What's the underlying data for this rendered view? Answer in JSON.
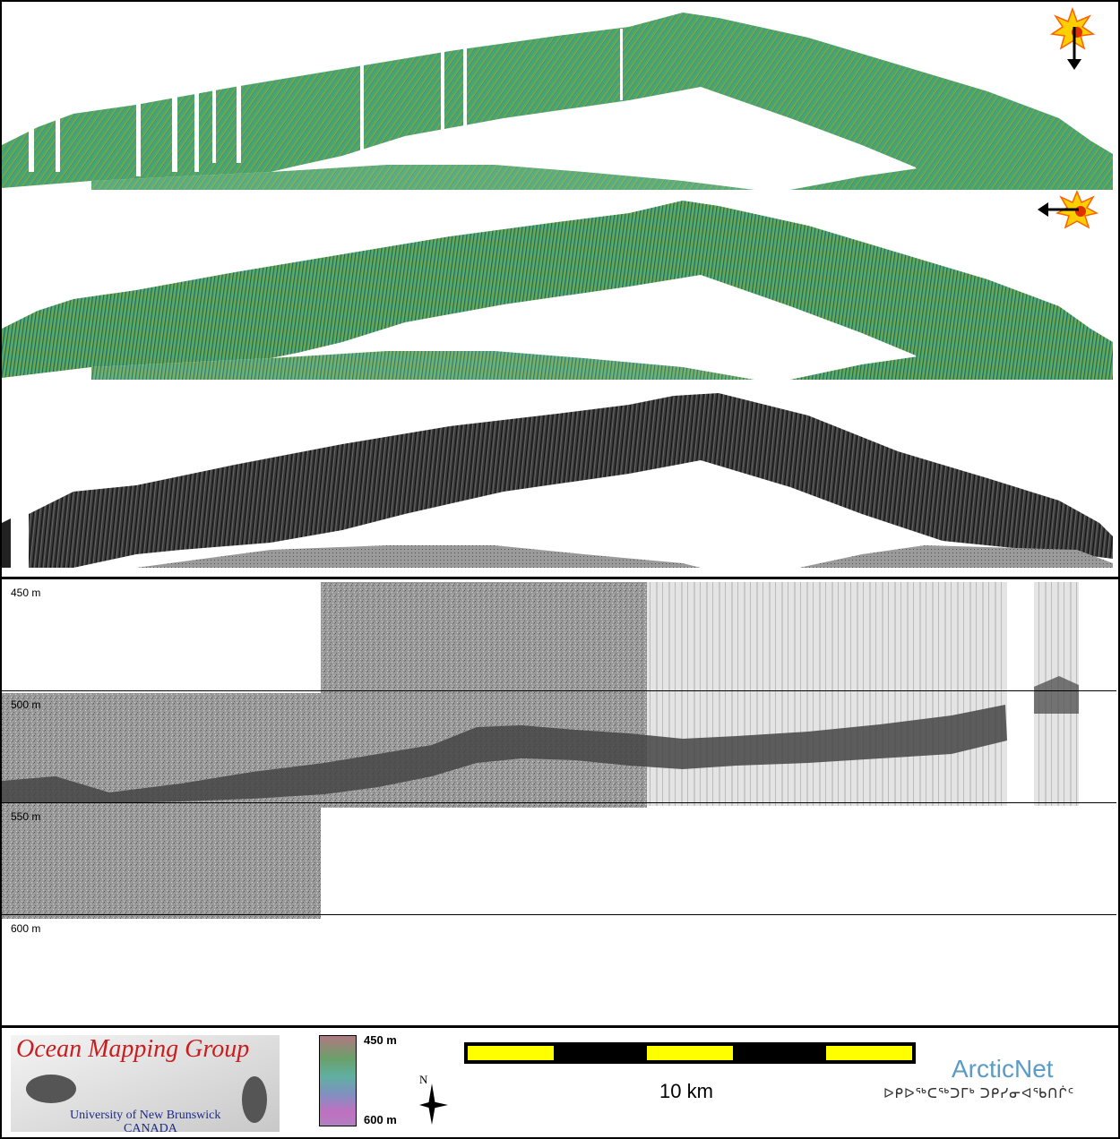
{
  "depth_scale": {
    "labels": [
      "450 m",
      "500 m",
      "550 m",
      "600 m"
    ]
  },
  "panels": {
    "bathy_north_sun": {
      "sun_direction": "north",
      "icon": "sun-arrow-down-icon"
    },
    "bathy_east_sun": {
      "sun_direction": "east",
      "icon": "sun-arrow-left-icon"
    },
    "backscatter": {
      "type": "backscatter mosaic"
    }
  },
  "colorbar": {
    "top_label": "450 m",
    "bottom_label": "600 m"
  },
  "scalebar": {
    "label": "10 km",
    "colors": {
      "dark": "#000000",
      "light": "#ffff00"
    }
  },
  "logos": {
    "omg_title": "Ocean Mapping Group",
    "omg_university": "University of New Brunswick",
    "omg_country": "CANADA",
    "arcticnet": "ArcticNet",
    "arcticnet_inuktitut": "ᐅᑭᐅᖅᑕᖅᑐᒥᒃ ᑐᑭᓯᓂᐊᖃᑎᒌᑦ"
  },
  "colors": {
    "bathy_shallow": "#3ea86a",
    "bathy_deep": "#4aa0a0",
    "bathy_olive": "#a8a848",
    "backscatter": "#303030",
    "sonar_noise": "#9a9a9a",
    "omg_red": "#c81e1e",
    "omg_blue": "#1a2a8a",
    "arcticnet_blue": "#5b9bc4"
  }
}
